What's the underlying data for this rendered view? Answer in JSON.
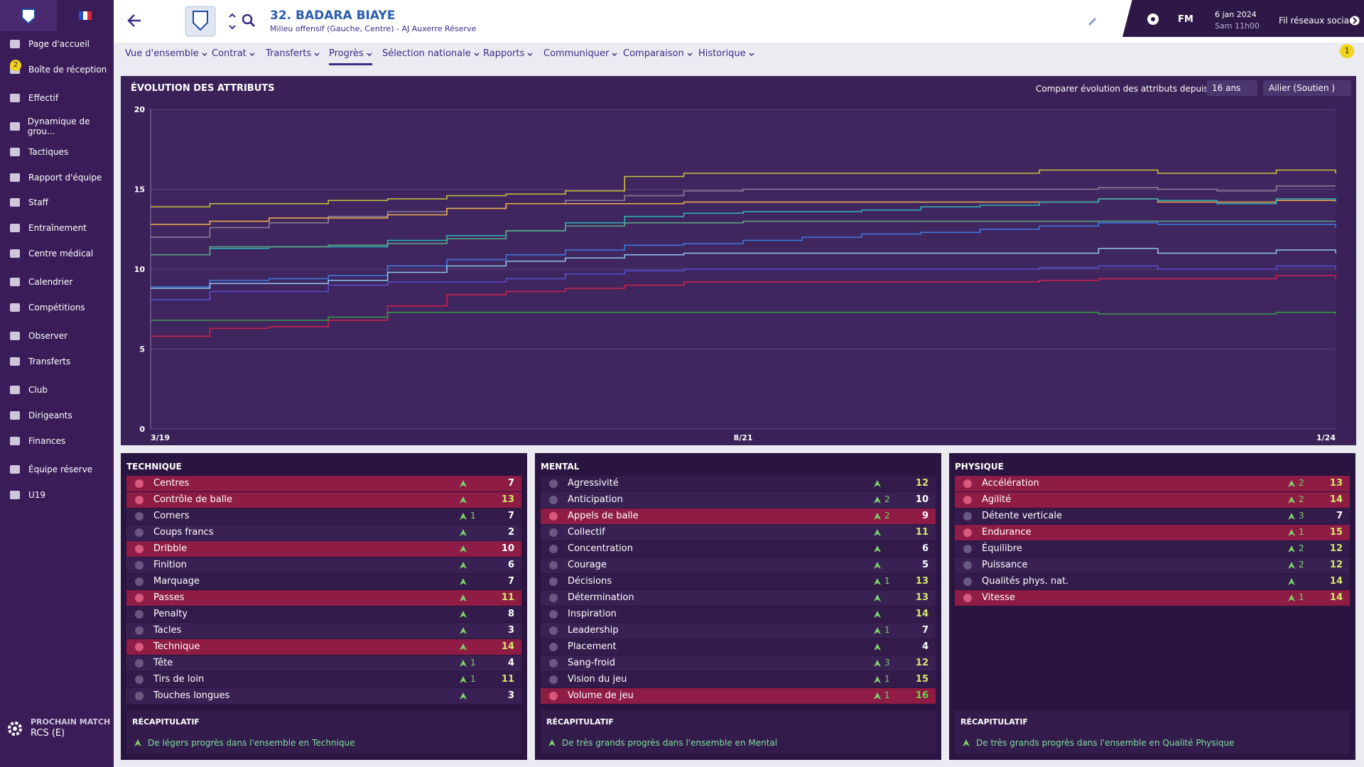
{
  "sidebar": {
    "items": [
      "Page d'accueil",
      "Boîte de réception",
      "Effectif",
      "Dynamique de grou...",
      "Tactiques",
      "Rapport d'équipe",
      "Staff",
      "Entraînement",
      "Centre médical",
      "Calendrier",
      "Compétitions",
      "Observer",
      "Transferts",
      "Club",
      "Dirigeants",
      "Finances",
      "Équipe réserve",
      "U19"
    ],
    "inbox_badge": "2",
    "next_match_label": "PROCHAIN MATCH",
    "next_match": "RCS (E)"
  },
  "header": {
    "player": "32. BADARA BIAYE",
    "subtitle": "Milieu offensif (Gauche, Centre) - AJ Auxerre Réserve",
    "brand": "FM",
    "date": "6 jan 2024",
    "time": "Sam 11h00",
    "social": "Fil réseaux sociaux",
    "notification_badge": "1"
  },
  "tabs": {
    "items": [
      "Vue d'ensemble",
      "Contrat",
      "Transferts",
      "Progrès",
      "Sélection nationale",
      "Rapports",
      "Communiquer",
      "Comparaison",
      "Historique"
    ],
    "active": 3
  },
  "chart": {
    "type": "line",
    "title": "ÉVOLUTION DES ATTRIBUTS",
    "compare_label": "Comparer évolution des attributs depuis",
    "age_select": "16 ans",
    "role_select": "Ailier (Soutien )",
    "categories": [
      "3/19",
      null,
      null,
      null,
      null,
      null,
      null,
      null,
      null,
      null,
      "8/21",
      null,
      null,
      null,
      null,
      null,
      null,
      null,
      null,
      null,
      "1/24"
    ],
    "ylim": [
      0,
      20
    ],
    "yticks": [
      0,
      5,
      10,
      15,
      20
    ],
    "grid": true,
    "series": [
      {
        "color": "#c9c23a",
        "values": [
          13.9,
          14.1,
          14.1,
          14.3,
          14.4,
          14.6,
          14.7,
          14.9,
          15.8,
          16.0,
          16.0,
          16.0,
          16.0,
          16.0,
          16.0,
          16.2,
          16.2,
          16.0,
          16.0,
          16.2,
          16.0
        ]
      },
      {
        "color": "#8a8298",
        "values": [
          12.0,
          12.6,
          12.9,
          13.3,
          13.6,
          13.8,
          14.1,
          14.3,
          14.6,
          14.9,
          15.0,
          15.0,
          15.0,
          15.0,
          15.0,
          15.0,
          15.1,
          15.0,
          14.9,
          15.2,
          15.2
        ]
      },
      {
        "color": "#f0b048",
        "values": [
          12.8,
          13.0,
          13.2,
          13.2,
          13.4,
          13.8,
          14.1,
          14.1,
          14.1,
          14.2,
          14.2,
          14.2,
          14.2,
          14.2,
          14.2,
          14.2,
          14.4,
          14.2,
          14.2,
          14.3,
          14.3
        ]
      },
      {
        "color": "#2bb3b8",
        "values": [
          10.9,
          11.3,
          11.4,
          11.4,
          11.8,
          12.1,
          12.4,
          12.9,
          13.3,
          13.5,
          13.6,
          13.6,
          13.7,
          13.9,
          14.0,
          14.2,
          14.4,
          14.3,
          14.1,
          14.4,
          14.2
        ]
      },
      {
        "color": "#5aa88a",
        "values": [
          10.9,
          11.4,
          11.4,
          11.5,
          11.6,
          11.9,
          12.4,
          12.7,
          12.9,
          12.9,
          13.0,
          13.0,
          13.0,
          13.0,
          13.0,
          13.0,
          13.0,
          13.0,
          13.0,
          13.0,
          13.0
        ]
      },
      {
        "color": "#3c7be0",
        "values": [
          8.9,
          9.3,
          9.4,
          9.6,
          10.2,
          10.6,
          10.9,
          11.2,
          11.5,
          11.6,
          11.8,
          12.0,
          12.2,
          12.3,
          12.5,
          12.7,
          12.9,
          12.8,
          12.8,
          12.8,
          12.6
        ]
      },
      {
        "color": "#8fc4f2",
        "values": [
          8.8,
          9.1,
          9.1,
          9.3,
          9.8,
          10.2,
          10.5,
          10.7,
          10.9,
          11.0,
          11.0,
          11.0,
          11.0,
          11.0,
          11.0,
          11.0,
          11.3,
          11.0,
          11.0,
          11.2,
          11.0
        ]
      },
      {
        "color": "#5a4fd0",
        "values": [
          8.1,
          8.6,
          8.6,
          9.0,
          9.2,
          9.2,
          9.4,
          9.7,
          9.9,
          10.0,
          10.0,
          10.0,
          10.0,
          10.0,
          10.0,
          10.1,
          10.2,
          10.0,
          10.0,
          10.2,
          10.0
        ]
      },
      {
        "color": "#d0204e",
        "values": [
          5.8,
          6.3,
          6.4,
          6.8,
          7.7,
          8.4,
          8.6,
          8.8,
          9.0,
          9.2,
          9.2,
          9.2,
          9.2,
          9.2,
          9.2,
          9.3,
          9.4,
          9.4,
          9.4,
          9.6,
          9.4
        ]
      },
      {
        "color": "#3a9a4a",
        "values": [
          6.8,
          6.8,
          6.8,
          7.0,
          7.3,
          7.3,
          7.3,
          7.3,
          7.3,
          7.3,
          7.3,
          7.3,
          7.3,
          7.3,
          7.3,
          7.3,
          7.2,
          7.2,
          7.2,
          7.3,
          7.2
        ]
      }
    ]
  },
  "attributes": [
    {
      "title": "TECHNIQUE",
      "rows": [
        {
          "name": "Centres",
          "value": 7,
          "highlighted": true
        },
        {
          "name": "Contrôle de balle",
          "value": 13,
          "highlighted": true
        },
        {
          "name": "Corners",
          "change": 1,
          "value": 7
        },
        {
          "name": "Coups francs",
          "value": 2
        },
        {
          "name": "Dribble",
          "value": 10,
          "highlighted": true
        },
        {
          "name": "Finition",
          "value": 6
        },
        {
          "name": "Marquage",
          "value": 7
        },
        {
          "name": "Passes",
          "value": 11,
          "highlighted": true
        },
        {
          "name": "Penalty",
          "value": 8
        },
        {
          "name": "Tacles",
          "value": 3
        },
        {
          "name": "Technique",
          "value": 14,
          "highlighted": true
        },
        {
          "name": "Tête",
          "change": 1,
          "value": 4
        },
        {
          "name": "Tirs de loin",
          "change": 1,
          "value": 11
        },
        {
          "name": "Touches longues",
          "value": 3
        }
      ],
      "summary_title": "RÉCAPITULATIF",
      "summary": "De légers progrès dans l'ensemble en Technique"
    },
    {
      "title": "MENTAL",
      "rows": [
        {
          "name": "Agressivité",
          "value": 12
        },
        {
          "name": "Anticipation",
          "change": 2,
          "value": 10
        },
        {
          "name": "Appels de balle",
          "change": 2,
          "value": 9,
          "highlighted": true
        },
        {
          "name": "Collectif",
          "value": 11
        },
        {
          "name": "Concentration",
          "value": 6
        },
        {
          "name": "Courage",
          "value": 5
        },
        {
          "name": "Décisions",
          "change": 1,
          "value": 13
        },
        {
          "name": "Détermination",
          "value": 13
        },
        {
          "name": "Inspiration",
          "value": 14
        },
        {
          "name": "Leadership",
          "change": 1,
          "value": 7
        },
        {
          "name": "Placement",
          "value": 4
        },
        {
          "name": "Sang-froid",
          "change": 3,
          "value": 12
        },
        {
          "name": "Vision du jeu",
          "change": 1,
          "value": 15
        },
        {
          "name": "Volume de jeu",
          "change": 1,
          "value": 16,
          "highlighted": true
        }
      ],
      "summary_title": "RÉCAPITULATIF",
      "summary": "De très grands progrès dans l'ensemble en Mental"
    },
    {
      "title": "PHYSIQUE",
      "rows": [
        {
          "name": "Accélération",
          "change": 2,
          "value": 13,
          "highlighted": true
        },
        {
          "name": "Agilité",
          "change": 2,
          "value": 14,
          "highlighted": true
        },
        {
          "name": "Détente verticale",
          "change": 3,
          "value": 7
        },
        {
          "name": "Endurance",
          "change": 1,
          "value": 15,
          "highlighted": true
        },
        {
          "name": "Équilibre",
          "change": 2,
          "value": 12
        },
        {
          "name": "Puissance",
          "change": 2,
          "value": 12
        },
        {
          "name": "Qualités phys. nat.",
          "value": 14
        },
        {
          "name": "Vitesse",
          "change": 1,
          "value": 14,
          "highlighted": true
        }
      ],
      "summary_title": "RÉCAPITULATIF",
      "summary": "De très grands progrès dans l'ensemble en Qualité Physique"
    }
  ]
}
